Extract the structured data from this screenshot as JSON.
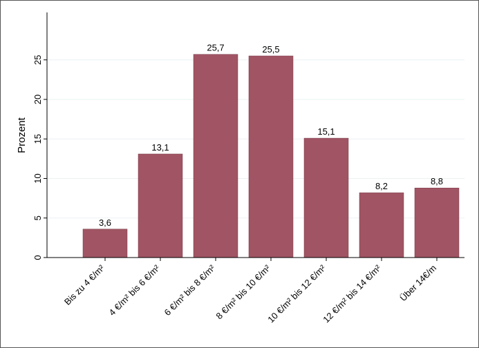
{
  "chart_data": {
    "type": "bar",
    "y_label": "Prozent",
    "categories": [
      "Bis zu 4 €/m²",
      "4 €/m² bis 6 €/m²",
      "6 €/m² bis 8 €/m²",
      "8 €/m² bis 10 €/m²",
      "10 €/m² bis 12 €/m²",
      "12 €/m² bis 14 €/m²",
      "Über 14€/m"
    ],
    "values": [
      3.6,
      13.1,
      25.7,
      25.5,
      15.1,
      8.2,
      8.8
    ],
    "value_labels": [
      "3,6",
      "13,1",
      "25,7",
      "25,5",
      "15,1",
      "8,2",
      "8,8"
    ],
    "color": "#a05464",
    "ylim": [
      0,
      31
    ],
    "yticks": [
      0,
      5,
      10,
      15,
      20,
      25
    ],
    "grid": true
  }
}
